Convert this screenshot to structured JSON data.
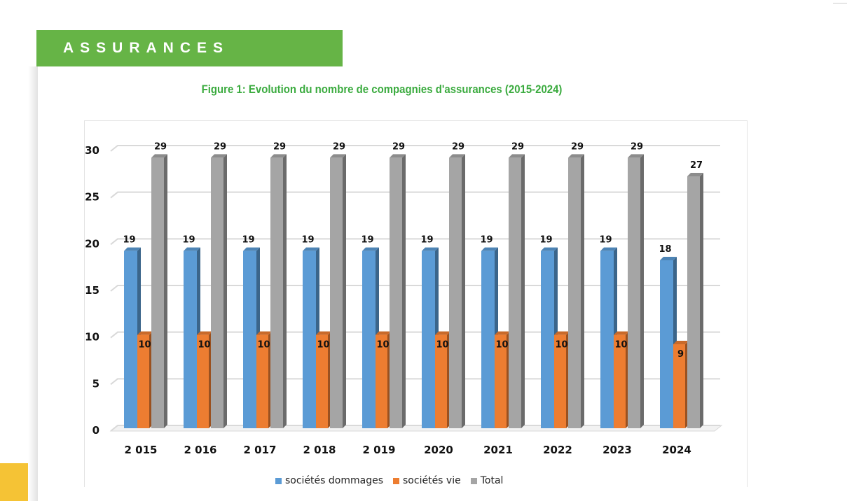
{
  "header": {
    "section": "ASSURANCES"
  },
  "chart_data": {
    "type": "bar",
    "title": "Figure 1: Evolution du nombre de compagnies d'assurances (2015-2024)",
    "categories": [
      "2 015",
      "2 016",
      "2 017",
      "2 018",
      "2 019",
      "2020",
      "2021",
      "2022",
      "2023",
      "2024"
    ],
    "series": [
      {
        "name": "sociétés dommages",
        "color": "#5b9bd5",
        "values": [
          19,
          19,
          19,
          19,
          19,
          19,
          19,
          19,
          19,
          18
        ]
      },
      {
        "name": "sociétés vie",
        "color": "#ed7d31",
        "values": [
          10,
          10,
          10,
          10,
          10,
          10,
          10,
          10,
          10,
          9
        ]
      },
      {
        "name": "Total",
        "color": "#a5a5a5",
        "values": [
          29,
          29,
          29,
          29,
          29,
          29,
          29,
          29,
          29,
          27
        ]
      }
    ],
    "ylim": [
      0,
      30
    ],
    "yticks": [
      0,
      5,
      10,
      15,
      20,
      25,
      30
    ],
    "grid": true,
    "legend": "bottom",
    "style": "3d-column",
    "data_labels": true
  }
}
